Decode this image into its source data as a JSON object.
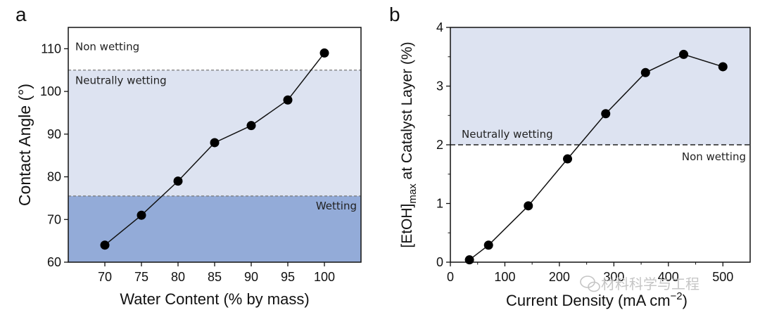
{
  "colors": {
    "neutral_region": "#dde3f1",
    "wetting_region": "#93abd8",
    "nonwetting_region": "#ffffff",
    "line": "#111111",
    "marker": "#000000",
    "watermark": "#bfbfbf"
  },
  "watermark": {
    "icon": "wechat-icon",
    "text": "材料科学与工程"
  },
  "chart_data": [
    {
      "panel_label": "a",
      "type": "line",
      "markers": true,
      "title": "",
      "xlabel": "Water Content (% by mass)",
      "ylabel": "Contact Angle (°)",
      "x": [
        70,
        75,
        80,
        85,
        90,
        95,
        100
      ],
      "series": [
        {
          "values": [
            64,
            71,
            79,
            88,
            92,
            98,
            109
          ]
        }
      ],
      "xlim": [
        65,
        105
      ],
      "ylim": [
        60,
        115
      ],
      "xticks": [
        70,
        75,
        80,
        85,
        90,
        95,
        100
      ],
      "yticks": [
        60,
        70,
        80,
        90,
        100,
        110
      ],
      "thresholds": [
        105,
        75.5
      ],
      "regions": [
        {
          "label": "Non wetting",
          "from": 105,
          "to": 115
        },
        {
          "label": "Neutrally wetting",
          "from": 75.5,
          "to": 105
        },
        {
          "label": "Wetting",
          "from": 60,
          "to": 75.5
        }
      ],
      "grid": false
    },
    {
      "panel_label": "b",
      "type": "line",
      "markers": true,
      "title": "",
      "xlabel": "Current Density (mA cm⁻²)",
      "ylabel": "[EtOH]max at Catalyst Layer (%)",
      "x": [
        35,
        70,
        143,
        215,
        285,
        358,
        428,
        500
      ],
      "series": [
        {
          "values": [
            0.04,
            0.29,
            0.96,
            1.76,
            2.53,
            3.23,
            3.54,
            3.33
          ]
        }
      ],
      "xlim": [
        0,
        550
      ],
      "ylim": [
        0,
        4
      ],
      "xticks": [
        0,
        100,
        200,
        300,
        400,
        500
      ],
      "yticks": [
        0,
        1,
        2,
        3,
        4
      ],
      "thresholds": [
        2
      ],
      "regions": [
        {
          "label": "Neutrally wetting",
          "from": 2,
          "to": 4
        },
        {
          "label": "Non wetting",
          "from": 0,
          "to": 2
        }
      ],
      "grid": false
    }
  ]
}
